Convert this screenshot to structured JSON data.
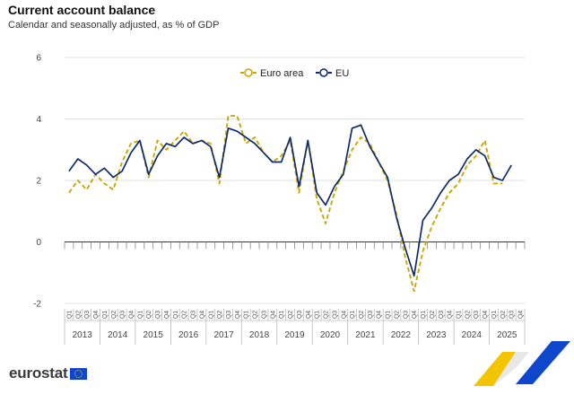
{
  "title": "Current account balance",
  "subtitle": "Calendar and seasonally adjusted, as % of GDP",
  "brand": {
    "name": "eurostat",
    "icon": "eu-flag-icon"
  },
  "colors": {
    "euro_area": "#c9a800",
    "eu": "#0d2a6b",
    "grid": "#e1e1e1",
    "axis": "#333333"
  },
  "chart_data": {
    "type": "line",
    "title": "Current account balance",
    "subtitle": "Calendar and seasonally adjusted, as % of GDP",
    "ylim": [
      -2,
      6
    ],
    "yticks": [
      -2,
      0,
      2,
      4,
      6
    ],
    "grid": true,
    "legend": "top-center",
    "years": [
      "2013",
      "2014",
      "2015",
      "2016",
      "2017",
      "2018",
      "2019",
      "2020",
      "2021",
      "2022",
      "2023",
      "2024",
      "2025"
    ],
    "quarter_labels": [
      "Q1",
      "Q2",
      "Q3",
      "Q4"
    ],
    "x": [
      "2013-Q1",
      "2013-Q2",
      "2013-Q3",
      "2013-Q4",
      "2014-Q1",
      "2014-Q2",
      "2014-Q3",
      "2014-Q4",
      "2015-Q1",
      "2015-Q2",
      "2015-Q3",
      "2015-Q4",
      "2016-Q1",
      "2016-Q2",
      "2016-Q3",
      "2016-Q4",
      "2017-Q1",
      "2017-Q2",
      "2017-Q3",
      "2017-Q4",
      "2018-Q1",
      "2018-Q2",
      "2018-Q3",
      "2018-Q4",
      "2019-Q1",
      "2019-Q2",
      "2019-Q3",
      "2019-Q4",
      "2020-Q1",
      "2020-Q2",
      "2020-Q3",
      "2020-Q4",
      "2021-Q1",
      "2021-Q2",
      "2021-Q3",
      "2021-Q4",
      "2022-Q1",
      "2022-Q2",
      "2022-Q3",
      "2022-Q4",
      "2023-Q1",
      "2023-Q2",
      "2023-Q3",
      "2023-Q4",
      "2024-Q1",
      "2024-Q2",
      "2024-Q3",
      "2024-Q4",
      "2025-Q1",
      "2025-Q2",
      "2025-Q3",
      "2025-Q4"
    ],
    "series": [
      {
        "name": "Euro area",
        "style": "dashed",
        "color": "#c9a800",
        "values": [
          1.6,
          2.0,
          1.7,
          2.2,
          1.9,
          1.7,
          2.6,
          3.2,
          3.3,
          2.1,
          3.3,
          3.0,
          3.3,
          3.6,
          3.2,
          3.3,
          3.2,
          1.9,
          4.1,
          4.1,
          3.2,
          3.4,
          2.9,
          2.6,
          2.8,
          3.3,
          1.6,
          3.3,
          1.4,
          0.6,
          1.6,
          2.3,
          3.0,
          3.4,
          3.2,
          2.6,
          2.0,
          0.9,
          -0.5,
          -1.6,
          -0.3,
          0.5,
          1.1,
          1.6,
          1.9,
          2.5,
          2.8,
          3.3,
          1.9,
          1.9,
          null,
          null
        ]
      },
      {
        "name": "EU",
        "style": "solid",
        "color": "#0d2a6b",
        "values": [
          2.3,
          2.7,
          2.5,
          2.2,
          2.4,
          2.1,
          2.3,
          2.9,
          3.3,
          2.2,
          2.8,
          3.2,
          3.1,
          3.4,
          3.2,
          3.3,
          3.1,
          2.1,
          3.7,
          3.6,
          3.4,
          3.2,
          2.9,
          2.6,
          2.6,
          3.4,
          1.8,
          3.3,
          1.6,
          1.2,
          1.8,
          2.2,
          3.7,
          3.8,
          3.1,
          2.6,
          2.1,
          0.8,
          -0.2,
          -1.1,
          0.7,
          1.1,
          1.6,
          2.0,
          2.2,
          2.7,
          3.0,
          2.8,
          2.1,
          2.0,
          2.5,
          null
        ]
      }
    ]
  }
}
